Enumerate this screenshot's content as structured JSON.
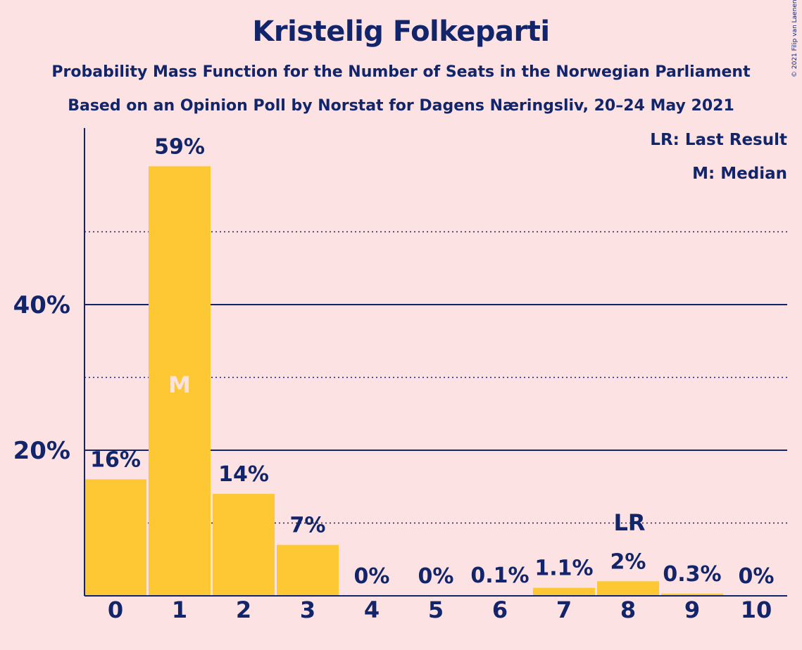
{
  "chart_data": {
    "type": "bar",
    "title": "Kristelig Folkeparti",
    "subtitle": "Probability Mass Function for the Number of Seats in the Norwegian Parliament",
    "subtitle2": "Based on an Opinion Poll by Norstat for Dagens Næringsliv, 20–24 May 2021",
    "copyright": "© 2021 Filip van Laenen",
    "legend": {
      "last_result": "LR: Last Result",
      "median": "M: Median",
      "position": "top-right"
    },
    "categories": [
      "0",
      "1",
      "2",
      "3",
      "4",
      "5",
      "6",
      "7",
      "8",
      "9",
      "10"
    ],
    "values": [
      16,
      59,
      14,
      7,
      0,
      0,
      0.1,
      1.1,
      2,
      0.3,
      0
    ],
    "value_labels": [
      "16%",
      "59%",
      "14%",
      "7%",
      "0%",
      "0%",
      "0.1%",
      "1.1%",
      "2%",
      "0.3%",
      "0%"
    ],
    "median_label": "M",
    "median_category": "1",
    "last_result_label": "LR",
    "last_result_category": "8",
    "ylim": [
      0,
      64
    ],
    "y_ticks_labeled": [
      20,
      40
    ],
    "y_tick_labels": [
      "20%",
      "40%"
    ],
    "y_gridlines_solid": [
      20,
      40
    ],
    "y_gridlines_dotted": [
      10,
      30,
      50
    ],
    "xlabel": "",
    "ylabel": "",
    "colors": {
      "bar": "#fec835",
      "axis": "#12256a",
      "background": "#fde2e4",
      "median_text": "#fde2e4"
    }
  }
}
